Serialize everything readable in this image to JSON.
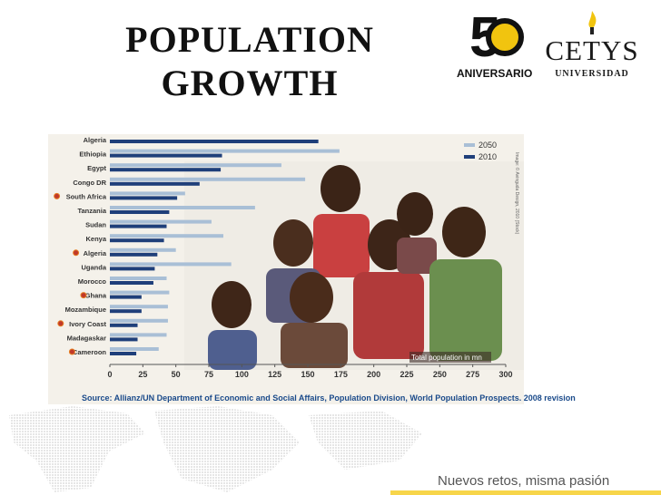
{
  "slide": {
    "title_line1": "POPULATION",
    "title_line2": "GROWTH",
    "anniversary_label": "ANIVERSARIO",
    "anniversary_number": "5",
    "university_name": "CETYS",
    "university_sub": "UNIVERSIDAD",
    "tagline": "Nuevos retos, misma pasión",
    "source": "Source: Allianz/UN Department of Economic and Social Affairs, Population Division, World Population Prospects. 2008 revision",
    "photo_credit": "Image: © Avinguda Design, 2010 (Stock)"
  },
  "colors": {
    "bar_2050": "#a9bfd6",
    "bar_2010": "#1f3f7a",
    "accent_yellow": "#f1c40f",
    "source_text": "#1a4a8a"
  },
  "chart_data": {
    "type": "bar",
    "orientation": "horizontal",
    "categories": [
      "Algeria",
      "Ethiopia",
      "Egypt",
      "Congo DR",
      "South Africa",
      "Tanzania",
      "Sudan",
      "Kenya",
      "Algeria",
      "Uganda",
      "Morocco",
      "Ghana",
      "Mozambique",
      "Ivory Coast",
      "Madagaskar",
      "Cameroon"
    ],
    "series": [
      {
        "name": "2050",
        "values": [
          null,
          174,
          130,
          148,
          57,
          110,
          77,
          86,
          50,
          92,
          43,
          45,
          44,
          44,
          43,
          37
        ]
      },
      {
        "name": "2010",
        "values": [
          158,
          85,
          84,
          68,
          51,
          45,
          43,
          41,
          36,
          34,
          33,
          24,
          24,
          21,
          21,
          20
        ]
      }
    ],
    "xlim": [
      0,
      300
    ],
    "xticks": [
      "0",
      "25",
      "50",
      "75",
      "100",
      "125",
      "150",
      "175",
      "200",
      "225",
      "250",
      "275",
      "300"
    ],
    "annotation": "Total population in mn",
    "legend_position": "top-right",
    "grid": false
  }
}
